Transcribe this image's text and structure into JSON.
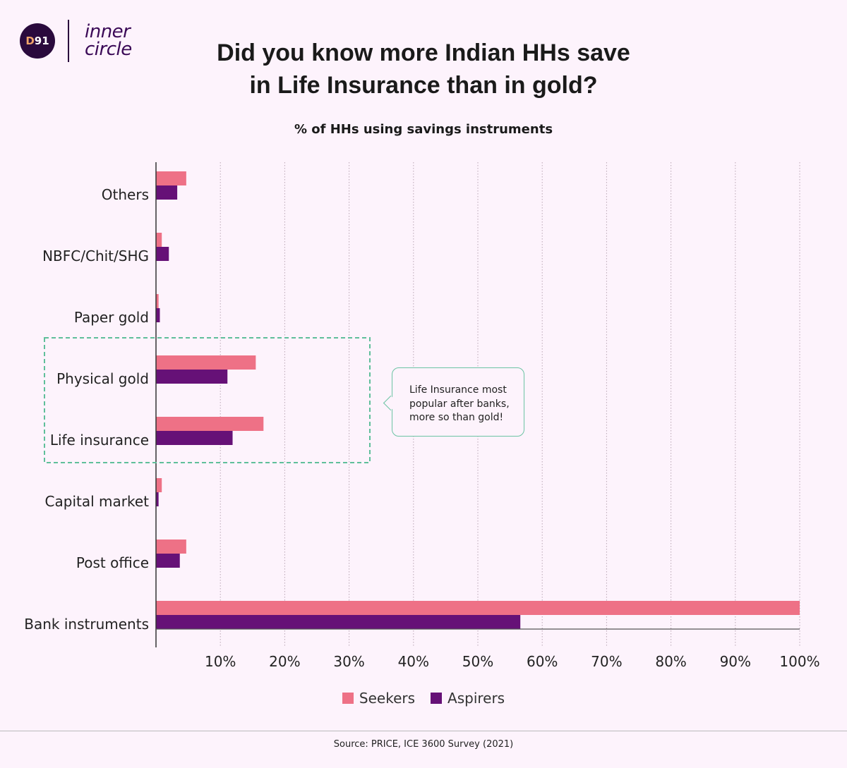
{
  "logo": {
    "badge_prefix": "D",
    "badge_suffix": "91",
    "line1": "inner",
    "line2": "circle"
  },
  "header": {
    "title_line1": "Did you know more Indian HHs save",
    "title_line2": "in Life Insurance than in gold?"
  },
  "annotation": {
    "text": "Life Insurance most popular after banks, more so than gold!"
  },
  "source": "Source: PRICE, ICE 3600 Survey (2021)",
  "colors": {
    "seekers": "#ee7186",
    "aspirers": "#661177",
    "highlight": "#5fbf9a",
    "grid": "#b9a6b4"
  },
  "chart_data": {
    "type": "bar",
    "orientation": "horizontal",
    "title": "% of HHs using savings instruments",
    "categories": [
      "Others",
      "NBFC/Chit/SHG",
      "Paper gold",
      "Physical gold",
      "Life insurance",
      "Capital market",
      "Post office",
      "Bank instruments"
    ],
    "series": [
      {
        "name": "Seekers",
        "values": [
          4.7,
          0.9,
          0.4,
          15.5,
          16.7,
          0.9,
          4.7,
          100
        ]
      },
      {
        "name": "Aspirers",
        "values": [
          3.3,
          2.0,
          0.6,
          11.1,
          11.9,
          0.4,
          3.7,
          56.6
        ]
      }
    ],
    "xlim": [
      0,
      100
    ],
    "xticks": [
      "10%",
      "20%",
      "30%",
      "40%",
      "50%",
      "60%",
      "70%",
      "80%",
      "90%",
      "100%"
    ],
    "grid": true,
    "highlighted_categories": [
      "Physical gold",
      "Life insurance"
    ],
    "legend_position": "bottom"
  }
}
